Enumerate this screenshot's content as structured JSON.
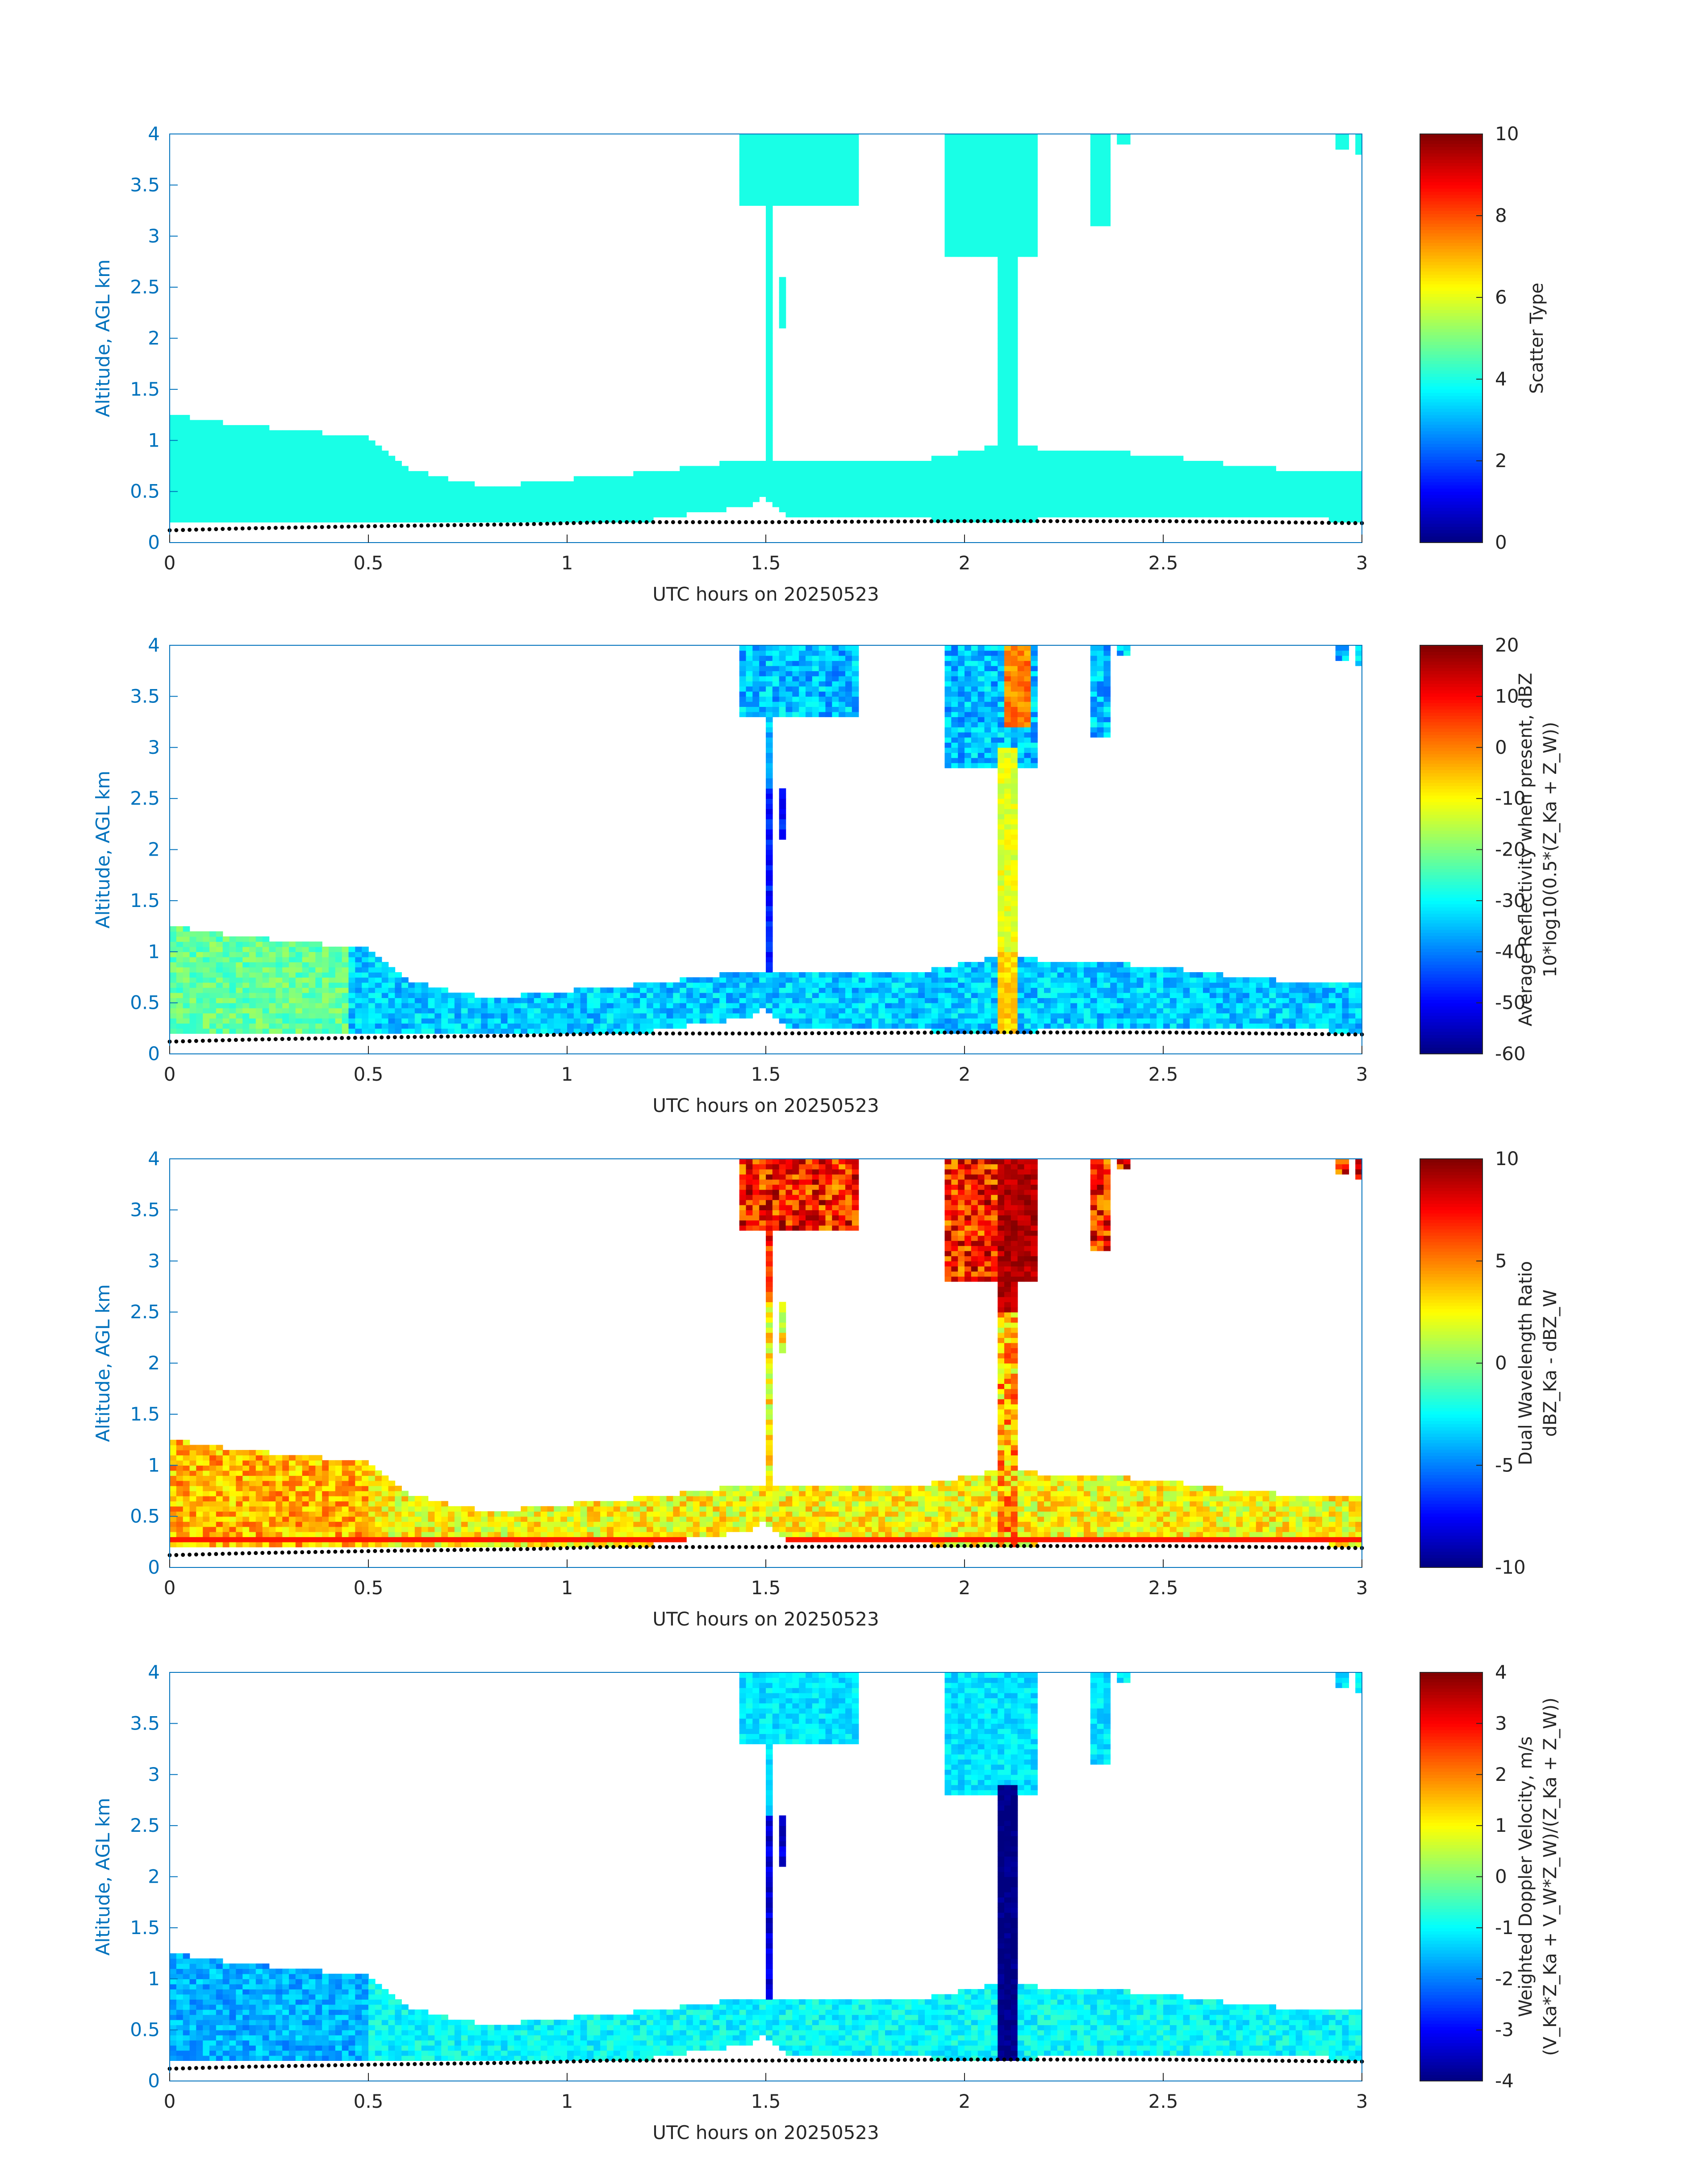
{
  "figure": {
    "colormap": "jet",
    "axis_color": "#0072BD",
    "text_color": "#262626",
    "cloud_mask_color": "#19FFE6",
    "ground_dots_color": "#000000"
  },
  "chart_data": [
    {
      "type": "heatmap",
      "title": "",
      "xlabel": "UTC hours on 20250523",
      "ylabel": "Altitude, AGL km",
      "colorbar_label": [
        "Scatter Type"
      ],
      "xlim": [
        0,
        3
      ],
      "ylim": [
        0,
        4
      ],
      "clim": [
        0,
        10
      ],
      "x_ticks": [
        0,
        0.5,
        1,
        1.5,
        2,
        2.5,
        3
      ],
      "x_tick_labels": [
        "0",
        "0.5",
        "1",
        "1.5",
        "2",
        "2.5",
        "3"
      ],
      "y_ticks": [
        0,
        0.5,
        1,
        1.5,
        2,
        2.5,
        3,
        3.5,
        4
      ],
      "y_tick_labels": [
        "0",
        "0.5",
        "1",
        "1.5",
        "2",
        "2.5",
        "3",
        "3.5",
        "4"
      ],
      "c_ticks": [
        0,
        2,
        4,
        6,
        8,
        10
      ],
      "c_tick_labels": [
        "0",
        "2",
        "4",
        "6",
        "8",
        "10"
      ],
      "field": "scatter",
      "typical_value": 4
    },
    {
      "type": "heatmap",
      "title": "",
      "xlabel": "UTC hours on 20250523",
      "ylabel": "Altitude, AGL km",
      "colorbar_label": [
        "Average Reflectivity when present, dBZ",
        "10*log10(0.5*(Z_Ka + Z_W))"
      ],
      "xlim": [
        0,
        3
      ],
      "ylim": [
        0,
        4
      ],
      "clim": [
        -60,
        20
      ],
      "x_ticks": [
        0,
        0.5,
        1,
        1.5,
        2,
        2.5,
        3
      ],
      "x_tick_labels": [
        "0",
        "0.5",
        "1",
        "1.5",
        "2",
        "2.5",
        "3"
      ],
      "y_ticks": [
        0,
        0.5,
        1,
        1.5,
        2,
        2.5,
        3,
        3.5,
        4
      ],
      "y_tick_labels": [
        "0",
        "0.5",
        "1",
        "1.5",
        "2",
        "2.5",
        "3",
        "3.5",
        "4"
      ],
      "c_ticks": [
        -60,
        -50,
        -40,
        -30,
        -20,
        -10,
        0,
        10,
        20
      ],
      "c_tick_labels": [
        "-60",
        "-50",
        "-40",
        "-30",
        "-20",
        "-10",
        "0",
        "10",
        "20"
      ],
      "field": "reflectivity"
    },
    {
      "type": "heatmap",
      "title": "",
      "xlabel": "UTC hours on 20250523",
      "ylabel": "Altitude, AGL km",
      "colorbar_label": [
        "Dual Wavelength Ratio",
        "dBZ_Ka - dBZ_W"
      ],
      "xlim": [
        0,
        3
      ],
      "ylim": [
        0,
        4
      ],
      "clim": [
        -10,
        10
      ],
      "x_ticks": [
        0,
        0.5,
        1,
        1.5,
        2,
        2.5,
        3
      ],
      "x_tick_labels": [
        "0",
        "0.5",
        "1",
        "1.5",
        "2",
        "2.5",
        "3"
      ],
      "y_ticks": [
        0,
        0.5,
        1,
        1.5,
        2,
        2.5,
        3,
        3.5,
        4
      ],
      "y_tick_labels": [
        "0",
        "0.5",
        "1",
        "1.5",
        "2",
        "2.5",
        "3",
        "3.5",
        "4"
      ],
      "c_ticks": [
        -10,
        -5,
        0,
        5,
        10
      ],
      "c_tick_labels": [
        "-10",
        "-5",
        "0",
        "5",
        "10"
      ],
      "field": "dwr"
    },
    {
      "type": "heatmap",
      "title": "",
      "xlabel": "UTC hours on 20250523",
      "ylabel": "Altitude, AGL km",
      "colorbar_label": [
        "Weighted Doppler Velocity, m/s",
        "(V_Ka*Z_Ka + V_W*Z_W)/(Z_Ka + Z_W))"
      ],
      "xlim": [
        0,
        3
      ],
      "ylim": [
        0,
        4
      ],
      "clim": [
        -4,
        4
      ],
      "x_ticks": [
        0,
        0.5,
        1,
        1.5,
        2,
        2.5,
        3
      ],
      "x_tick_labels": [
        "0",
        "0.5",
        "1",
        "1.5",
        "2",
        "2.5",
        "3"
      ],
      "y_ticks": [
        0,
        0.5,
        1,
        1.5,
        2,
        2.5,
        3,
        3.5,
        4
      ],
      "y_tick_labels": [
        "0",
        "0.5",
        "1",
        "1.5",
        "2",
        "2.5",
        "3",
        "3.5",
        "4"
      ],
      "c_ticks": [
        -4,
        -3,
        -2,
        -1,
        0,
        1,
        2,
        3,
        4
      ],
      "c_tick_labels": [
        "-4",
        "-3",
        "-2",
        "-1",
        "0",
        "1",
        "2",
        "3",
        "4"
      ],
      "field": "velocity"
    }
  ],
  "cloud_structure": {
    "boundary_layer_top_km": [
      [
        0.0,
        1.25
      ],
      [
        0.1,
        1.2
      ],
      [
        0.2,
        1.13
      ],
      [
        0.3,
        1.12
      ],
      [
        0.4,
        1.07
      ],
      [
        0.5,
        1.05
      ],
      [
        0.55,
        0.88
      ],
      [
        0.6,
        0.72
      ],
      [
        0.7,
        0.62
      ],
      [
        0.8,
        0.55
      ],
      [
        0.9,
        0.58
      ],
      [
        1.0,
        0.62
      ],
      [
        1.1,
        0.66
      ],
      [
        1.2,
        0.68
      ],
      [
        1.3,
        0.74
      ],
      [
        1.4,
        0.78
      ],
      [
        1.5,
        0.82
      ],
      [
        1.6,
        0.8
      ],
      [
        1.7,
        0.78
      ],
      [
        1.8,
        0.8
      ],
      [
        1.9,
        0.8
      ],
      [
        2.0,
        0.9
      ],
      [
        2.1,
        0.95
      ],
      [
        2.2,
        0.92
      ],
      [
        2.3,
        0.9
      ],
      [
        2.4,
        0.88
      ],
      [
        2.5,
        0.85
      ],
      [
        2.6,
        0.8
      ],
      [
        2.7,
        0.75
      ],
      [
        2.8,
        0.72
      ],
      [
        2.9,
        0.7
      ],
      [
        3.0,
        0.72
      ]
    ],
    "cloud_base_km": [
      [
        0.0,
        0.2
      ],
      [
        0.6,
        0.2
      ],
      [
        1.2,
        0.22
      ],
      [
        1.45,
        0.35
      ],
      [
        1.5,
        0.45
      ],
      [
        1.55,
        0.25
      ],
      [
        2.0,
        0.22
      ],
      [
        2.7,
        0.24
      ],
      [
        3.0,
        0.22
      ]
    ],
    "ground_line_km": [
      [
        0.0,
        0.12
      ],
      [
        0.2,
        0.14
      ],
      [
        0.5,
        0.16
      ],
      [
        0.9,
        0.18
      ],
      [
        1.1,
        0.2
      ],
      [
        1.5,
        0.2
      ],
      [
        2.0,
        0.21
      ],
      [
        2.5,
        0.21
      ],
      [
        3.0,
        0.19
      ]
    ],
    "upper_features": [
      {
        "x0": 1.44,
        "x1": 1.74,
        "bottom_km": 3.3,
        "top_km": 4.0
      },
      {
        "x0": 1.5,
        "x1": 1.52,
        "bottom_km": 0.8,
        "top_km": 3.3
      },
      {
        "x0": 1.53,
        "x1": 1.55,
        "bottom_km": 2.1,
        "top_km": 2.6
      },
      {
        "x0": 1.95,
        "x1": 2.18,
        "bottom_km": 2.8,
        "top_km": 4.0
      },
      {
        "x0": 2.08,
        "x1": 2.13,
        "bottom_km": 0.2,
        "top_km": 2.8
      },
      {
        "x0": 2.32,
        "x1": 2.36,
        "bottom_km": 3.1,
        "top_km": 4.0
      },
      {
        "x0": 2.38,
        "x1": 2.41,
        "bottom_km": 3.9,
        "top_km": 4.0
      },
      {
        "x0": 2.93,
        "x1": 2.96,
        "bottom_km": 3.85,
        "top_km": 4.0
      },
      {
        "x0": 2.98,
        "x1": 3.0,
        "bottom_km": 3.8,
        "top_km": 4.0
      }
    ]
  }
}
